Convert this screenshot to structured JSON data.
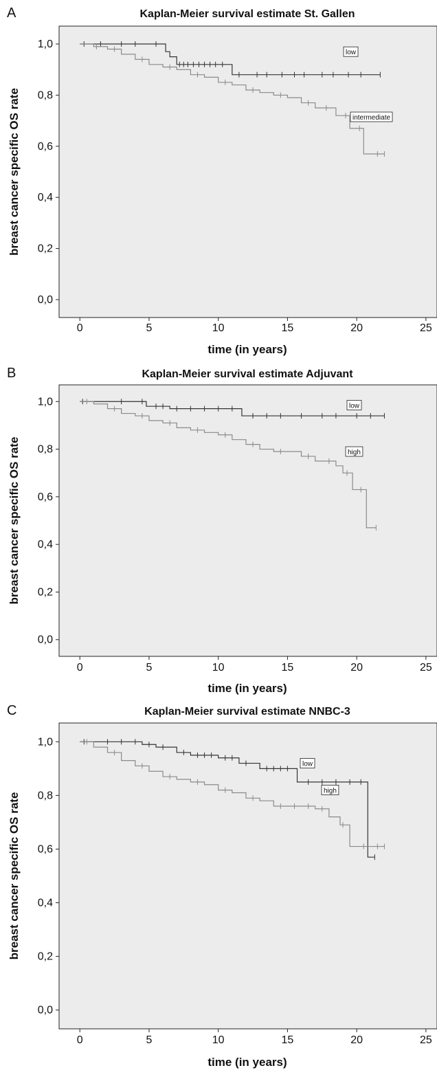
{
  "chart_data": [
    {
      "type": "step",
      "panel": "A",
      "title": "Kaplan-Meier survival estimate St. Gallen",
      "x_label": "time (in years)",
      "y_label": "breast cancer specific OS rate",
      "xlim": [
        -1.5,
        25.8
      ],
      "ylim": [
        -0.07,
        1.07
      ],
      "xticks": [
        0,
        5,
        10,
        15,
        20,
        25
      ],
      "yticks": [
        {
          "value": 0,
          "label": "0,0"
        },
        {
          "value": 0.2,
          "label": "0,2"
        },
        {
          "value": 0.4,
          "label": "0,4"
        },
        {
          "value": 0.6,
          "label": "0,6"
        },
        {
          "value": 0.8,
          "label": "0,8"
        },
        {
          "value": 1,
          "label": "1,0"
        }
      ],
      "series": [
        {
          "name": "low",
          "color": "#333333",
          "x": [
            0,
            6.2,
            6.5,
            7.0,
            11.0,
            21.7
          ],
          "values": [
            1.0,
            0.97,
            0.95,
            0.92,
            0.88,
            0.88
          ],
          "censored": [
            0.3,
            1.5,
            3,
            4,
            5.5,
            7.2,
            7.5,
            7.8,
            8.2,
            8.6,
            9,
            9.4,
            9.8,
            10.3,
            11.5,
            12.8,
            13.5,
            14.6,
            15.5,
            16.2,
            17.5,
            18.3,
            19.4,
            20.3,
            21.7
          ]
        },
        {
          "name": "intermediate",
          "color": "#8a8a8a",
          "x": [
            0,
            1,
            2,
            3,
            4,
            5,
            6,
            7,
            8,
            9,
            10,
            11,
            12,
            13,
            14,
            15,
            16,
            17,
            18.5,
            19.5,
            20.5,
            22
          ],
          "values": [
            1.0,
            0.99,
            0.98,
            0.96,
            0.94,
            0.92,
            0.91,
            0.9,
            0.88,
            0.87,
            0.85,
            0.84,
            0.82,
            0.81,
            0.8,
            0.79,
            0.77,
            0.75,
            0.72,
            0.67,
            0.57,
            0.57
          ],
          "censored": [
            1.2,
            2.5,
            4.5,
            6.5,
            8.5,
            10.5,
            12.5,
            14.5,
            16.5,
            17.8,
            19.2,
            20.2,
            21.5,
            22
          ]
        }
      ]
    },
    {
      "type": "step",
      "panel": "B",
      "title": "Kaplan-Meier survival estimate Adjuvant",
      "x_label": "time (in years)",
      "y_label": "breast cancer specific OS rate",
      "xlim": [
        -1.5,
        25.8
      ],
      "ylim": [
        -0.07,
        1.07
      ],
      "xticks": [
        0,
        5,
        10,
        15,
        20,
        25
      ],
      "yticks": [
        {
          "value": 0,
          "label": "0,0"
        },
        {
          "value": 0.2,
          "label": "0,2"
        },
        {
          "value": 0.4,
          "label": "0,4"
        },
        {
          "value": 0.6,
          "label": "0,6"
        },
        {
          "value": 0.8,
          "label": "0,8"
        },
        {
          "value": 1,
          "label": "1,0"
        }
      ],
      "series": [
        {
          "name": "low",
          "color": "#333333",
          "x": [
            0,
            4.8,
            6.5,
            11.7,
            22
          ],
          "values": [
            1.0,
            0.98,
            0.97,
            0.94,
            0.94
          ],
          "censored": [
            0.2,
            3,
            4.5,
            5.5,
            6,
            7,
            8,
            9,
            10,
            11,
            12.5,
            13.5,
            14.5,
            16,
            17.5,
            18.5,
            20,
            21,
            22
          ]
        },
        {
          "name": "high",
          "color": "#8a8a8a",
          "x": [
            0,
            1,
            2,
            3,
            4,
            5,
            6,
            7,
            8,
            9,
            10,
            11,
            12,
            13,
            14,
            16,
            17,
            18.5,
            19,
            19.7,
            20.7,
            21.4
          ],
          "values": [
            1.0,
            0.99,
            0.97,
            0.95,
            0.94,
            0.92,
            0.91,
            0.89,
            0.88,
            0.87,
            0.86,
            0.84,
            0.82,
            0.8,
            0.79,
            0.77,
            0.75,
            0.73,
            0.7,
            0.63,
            0.47,
            0.47
          ],
          "censored": [
            0.5,
            2.5,
            4.5,
            6.5,
            8.5,
            10.5,
            12.5,
            14.5,
            16.5,
            18,
            19.3,
            20.3,
            21.4
          ]
        }
      ]
    },
    {
      "type": "step",
      "panel": "C",
      "title": "Kaplan-Meier survival estimate NNBC-3",
      "x_label": "time (in years)",
      "y_label": "breast cancer specific OS rate",
      "xlim": [
        -1.5,
        25.8
      ],
      "ylim": [
        -0.07,
        1.07
      ],
      "xticks": [
        0,
        5,
        10,
        15,
        20,
        25
      ],
      "yticks": [
        {
          "value": 0,
          "label": "0,0"
        },
        {
          "value": 0.2,
          "label": "0,2"
        },
        {
          "value": 0.4,
          "label": "0,4"
        },
        {
          "value": 0.6,
          "label": "0,6"
        },
        {
          "value": 0.8,
          "label": "0,8"
        },
        {
          "value": 1,
          "label": "1,0"
        }
      ],
      "series": [
        {
          "name": "low",
          "color": "#333333",
          "x": [
            0,
            4.5,
            5.5,
            7,
            8,
            10,
            11.5,
            13,
            15.7,
            20.8,
            21.3
          ],
          "values": [
            1.0,
            0.99,
            0.98,
            0.96,
            0.95,
            0.94,
            0.92,
            0.9,
            0.85,
            0.57,
            0.57
          ],
          "censored": [
            0.3,
            2,
            3,
            4,
            5,
            6,
            7.5,
            8.5,
            9,
            9.5,
            10.5,
            11,
            12,
            13.5,
            14,
            14.5,
            15,
            16.5,
            17.5,
            18.5,
            19.5,
            20.3,
            21.3
          ]
        },
        {
          "name": "high",
          "color": "#8a8a8a",
          "x": [
            0,
            1,
            2,
            3,
            4,
            5,
            6,
            7,
            8,
            9,
            10,
            11,
            12,
            13,
            14,
            17,
            18,
            18.8,
            19.5,
            22
          ],
          "values": [
            1.0,
            0.98,
            0.96,
            0.93,
            0.91,
            0.89,
            0.87,
            0.86,
            0.85,
            0.84,
            0.82,
            0.81,
            0.79,
            0.78,
            0.76,
            0.75,
            0.72,
            0.69,
            0.61,
            0.61
          ],
          "censored": [
            0.5,
            2.5,
            4.5,
            6.5,
            8.5,
            10.5,
            12.5,
            14.5,
            15.5,
            16.5,
            17.5,
            19,
            20.5,
            21.5,
            22
          ]
        }
      ]
    }
  ]
}
